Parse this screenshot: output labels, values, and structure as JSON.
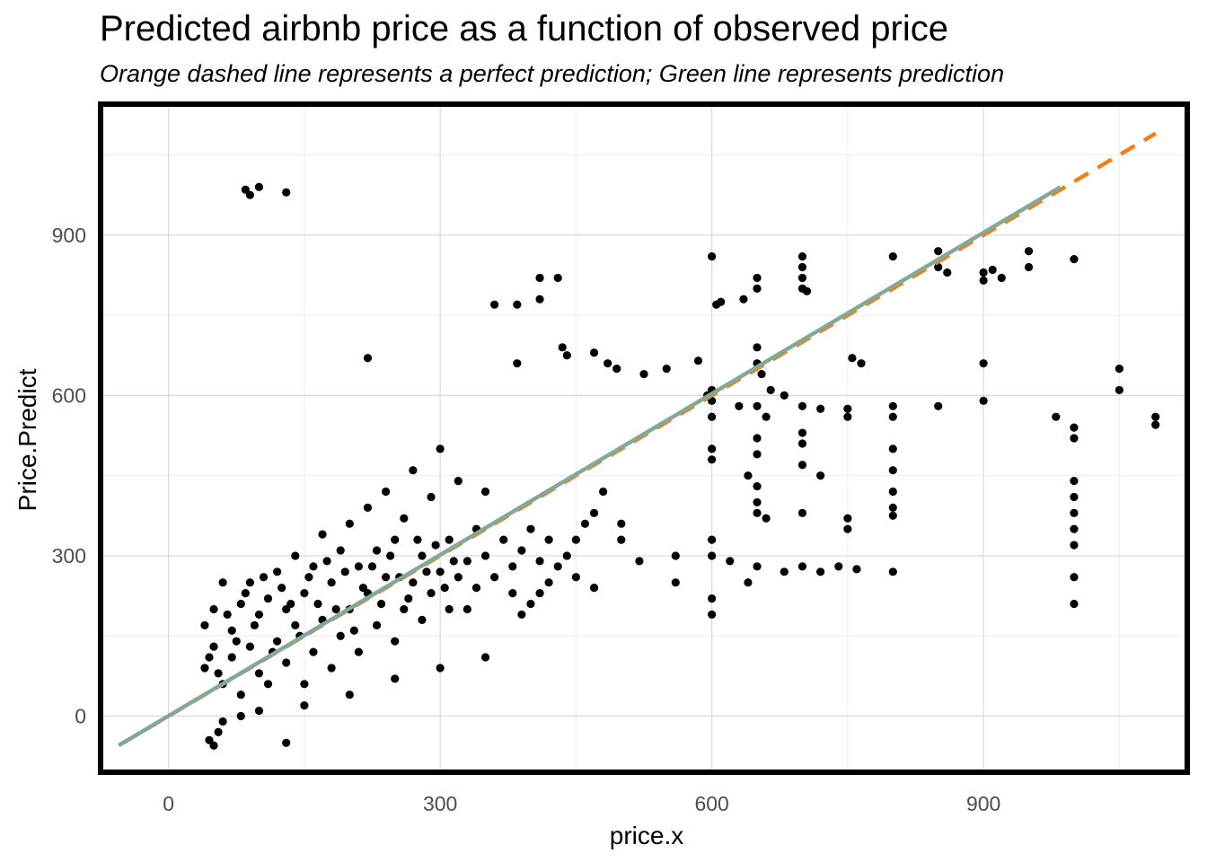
{
  "title": "Predicted airbnb price as a function of observed price",
  "subtitle": "Orange dashed line represents a perfect prediction; Green line represents prediction",
  "colors": {
    "points": "#000000",
    "perfect_line": "#f07f1a",
    "fit_line": "#83a898",
    "grid": "#d9d9d9",
    "frame": "#000000"
  },
  "chart_data": {
    "type": "scatter",
    "title": "Predicted airbnb price as a function of observed price",
    "subtitle": "Orange dashed line represents a perfect prediction; Green line represents prediction",
    "xlabel": "price.x",
    "ylabel": "Price.Predict",
    "xlim": [
      -75,
      1125
    ],
    "ylim": [
      -105,
      1145
    ],
    "x_ticks": [
      0,
      300,
      600,
      900
    ],
    "y_ticks": [
      0,
      300,
      600,
      900
    ],
    "grid": true,
    "legend": "none",
    "lines": [
      {
        "label": "perfect prediction",
        "style": "dashed",
        "color": "#f07f1a",
        "x": [
          -50,
          1090
        ],
        "y": [
          -50,
          1090
        ]
      },
      {
        "label": "prediction",
        "style": "solid",
        "color": "#83a898",
        "x": [
          -55,
          985
        ],
        "y": [
          -55,
          990
        ]
      }
    ],
    "points": [
      [
        85,
        985
      ],
      [
        90,
        975
      ],
      [
        100,
        990
      ],
      [
        130,
        980
      ],
      [
        410,
        820
      ],
      [
        430,
        820
      ],
      [
        360,
        770
      ],
      [
        385,
        770
      ],
      [
        410,
        780
      ],
      [
        220,
        670
      ],
      [
        435,
        690
      ],
      [
        440,
        675
      ],
      [
        470,
        680
      ],
      [
        485,
        660
      ],
      [
        495,
        650
      ],
      [
        385,
        660
      ],
      [
        525,
        640
      ],
      [
        550,
        650
      ],
      [
        585,
        665
      ],
      [
        600,
        860
      ],
      [
        605,
        770
      ],
      [
        610,
        775
      ],
      [
        635,
        780
      ],
      [
        650,
        820
      ],
      [
        650,
        800
      ],
      [
        595,
        600
      ],
      [
        600,
        610
      ],
      [
        650,
        690
      ],
      [
        650,
        660
      ],
      [
        655,
        640
      ],
      [
        665,
        610
      ],
      [
        680,
        600
      ],
      [
        700,
        860
      ],
      [
        700,
        840
      ],
      [
        700,
        820
      ],
      [
        700,
        800
      ],
      [
        705,
        795
      ],
      [
        700,
        530
      ],
      [
        700,
        510
      ],
      [
        755,
        670
      ],
      [
        765,
        660
      ],
      [
        800,
        860
      ],
      [
        850,
        870
      ],
      [
        850,
        840
      ],
      [
        860,
        830
      ],
      [
        900,
        830
      ],
      [
        900,
        815
      ],
      [
        910,
        835
      ],
      [
        920,
        820
      ],
      [
        950,
        870
      ],
      [
        950,
        840
      ],
      [
        1000,
        855
      ],
      [
        600,
        590
      ],
      [
        600,
        560
      ],
      [
        630,
        580
      ],
      [
        650,
        580
      ],
      [
        660,
        560
      ],
      [
        700,
        580
      ],
      [
        720,
        575
      ],
      [
        750,
        575
      ],
      [
        750,
        560
      ],
      [
        800,
        580
      ],
      [
        800,
        560
      ],
      [
        850,
        580
      ],
      [
        900,
        590
      ],
      [
        900,
        660
      ],
      [
        980,
        560
      ],
      [
        1050,
        650
      ],
      [
        1050,
        610
      ],
      [
        1090,
        560
      ],
      [
        1090,
        545
      ],
      [
        1000,
        540
      ],
      [
        1000,
        520
      ],
      [
        600,
        500
      ],
      [
        600,
        480
      ],
      [
        650,
        520
      ],
      [
        650,
        490
      ],
      [
        700,
        470
      ],
      [
        720,
        450
      ],
      [
        640,
        450
      ],
      [
        650,
        430
      ],
      [
        650,
        400
      ],
      [
        650,
        380
      ],
      [
        660,
        370
      ],
      [
        700,
        380
      ],
      [
        800,
        500
      ],
      [
        800,
        460
      ],
      [
        800,
        420
      ],
      [
        800,
        390
      ],
      [
        800,
        375
      ],
      [
        750,
        370
      ],
      [
        750,
        350
      ],
      [
        1000,
        440
      ],
      [
        1000,
        410
      ],
      [
        1000,
        380
      ],
      [
        1000,
        350
      ],
      [
        1000,
        320
      ],
      [
        1000,
        260
      ],
      [
        1000,
        210
      ],
      [
        600,
        330
      ],
      [
        600,
        300
      ],
      [
        620,
        290
      ],
      [
        650,
        280
      ],
      [
        680,
        270
      ],
      [
        700,
        280
      ],
      [
        720,
        270
      ],
      [
        740,
        280
      ],
      [
        760,
        275
      ],
      [
        800,
        270
      ],
      [
        640,
        250
      ],
      [
        600,
        220
      ],
      [
        600,
        190
      ],
      [
        560,
        300
      ],
      [
        560,
        250
      ],
      [
        520,
        290
      ],
      [
        500,
        360
      ],
      [
        500,
        330
      ],
      [
        480,
        420
      ],
      [
        470,
        380
      ],
      [
        460,
        360
      ],
      [
        450,
        330
      ],
      [
        440,
        300
      ],
      [
        430,
        280
      ],
      [
        420,
        250
      ],
      [
        410,
        230
      ],
      [
        400,
        210
      ],
      [
        390,
        190
      ],
      [
        380,
        230
      ],
      [
        450,
        260
      ],
      [
        470,
        240
      ],
      [
        50,
        -55
      ],
      [
        45,
        -45
      ],
      [
        55,
        -30
      ],
      [
        60,
        -10
      ],
      [
        130,
        -50
      ],
      [
        80,
        0
      ],
      [
        100,
        10
      ],
      [
        150,
        20
      ],
      [
        200,
        40
      ],
      [
        250,
        70
      ],
      [
        300,
        90
      ],
      [
        350,
        110
      ],
      [
        40,
        90
      ],
      [
        40,
        170
      ],
      [
        50,
        130
      ],
      [
        50,
        200
      ],
      [
        60,
        60
      ],
      [
        60,
        250
      ],
      [
        70,
        110
      ],
      [
        70,
        160
      ],
      [
        80,
        40
      ],
      [
        80,
        210
      ],
      [
        90,
        130
      ],
      [
        90,
        250
      ],
      [
        100,
        80
      ],
      [
        100,
        190
      ],
      [
        110,
        220
      ],
      [
        110,
        60
      ],
      [
        120,
        140
      ],
      [
        120,
        270
      ],
      [
        130,
        100
      ],
      [
        130,
        200
      ],
      [
        140,
        170
      ],
      [
        140,
        300
      ],
      [
        150,
        60
      ],
      [
        150,
        230
      ],
      [
        160,
        120
      ],
      [
        160,
        280
      ],
      [
        170,
        180
      ],
      [
        170,
        340
      ],
      [
        180,
        90
      ],
      [
        180,
        250
      ],
      [
        190,
        150
      ],
      [
        190,
        310
      ],
      [
        200,
        200
      ],
      [
        200,
        360
      ],
      [
        210,
        120
      ],
      [
        210,
        280
      ],
      [
        220,
        230
      ],
      [
        220,
        390
      ],
      [
        230,
        170
      ],
      [
        230,
        310
      ],
      [
        240,
        260
      ],
      [
        240,
        420
      ],
      [
        250,
        140
      ],
      [
        250,
        330
      ],
      [
        260,
        200
      ],
      [
        260,
        370
      ],
      [
        270,
        250
      ],
      [
        270,
        460
      ],
      [
        280,
        180
      ],
      [
        280,
        300
      ],
      [
        290,
        230
      ],
      [
        290,
        410
      ],
      [
        300,
        270
      ],
      [
        300,
        500
      ],
      [
        310,
        200
      ],
      [
        310,
        330
      ],
      [
        320,
        260
      ],
      [
        320,
        440
      ],
      [
        330,
        290
      ],
      [
        330,
        200
      ],
      [
        340,
        350
      ],
      [
        340,
        240
      ],
      [
        350,
        300
      ],
      [
        350,
        420
      ],
      [
        360,
        260
      ],
      [
        370,
        330
      ],
      [
        380,
        280
      ],
      [
        390,
        310
      ],
      [
        400,
        350
      ],
      [
        410,
        290
      ],
      [
        420,
        330
      ],
      [
        45,
        110
      ],
      [
        55,
        80
      ],
      [
        65,
        190
      ],
      [
        75,
        140
      ],
      [
        85,
        230
      ],
      [
        95,
        170
      ],
      [
        105,
        260
      ],
      [
        115,
        120
      ],
      [
        125,
        240
      ],
      [
        135,
        210
      ],
      [
        145,
        150
      ],
      [
        155,
        260
      ],
      [
        165,
        210
      ],
      [
        175,
        290
      ],
      [
        185,
        200
      ],
      [
        195,
        270
      ],
      [
        205,
        160
      ],
      [
        215,
        240
      ],
      [
        225,
        280
      ],
      [
        235,
        210
      ],
      [
        245,
        300
      ],
      [
        255,
        260
      ],
      [
        265,
        220
      ],
      [
        275,
        330
      ],
      [
        285,
        270
      ],
      [
        295,
        320
      ],
      [
        305,
        240
      ],
      [
        315,
        290
      ]
    ]
  }
}
